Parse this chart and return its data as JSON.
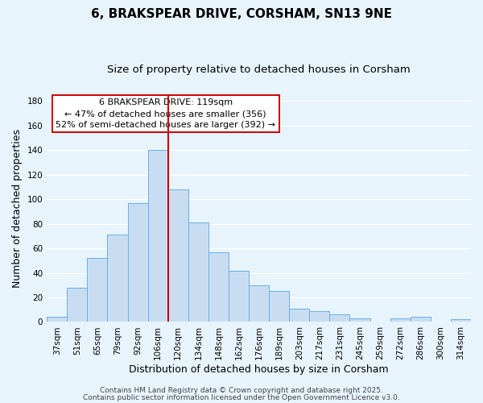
{
  "title": "6, BRAKSPEAR DRIVE, CORSHAM, SN13 9NE",
  "subtitle": "Size of property relative to detached houses in Corsham",
  "xlabel": "Distribution of detached houses by size in Corsham",
  "ylabel": "Number of detached properties",
  "categories": [
    "37sqm",
    "51sqm",
    "65sqm",
    "79sqm",
    "92sqm",
    "106sqm",
    "120sqm",
    "134sqm",
    "148sqm",
    "162sqm",
    "176sqm",
    "189sqm",
    "203sqm",
    "217sqm",
    "231sqm",
    "245sqm",
    "259sqm",
    "272sqm",
    "286sqm",
    "300sqm",
    "314sqm"
  ],
  "values": [
    4,
    28,
    52,
    71,
    97,
    140,
    108,
    81,
    57,
    42,
    30,
    25,
    11,
    9,
    6,
    3,
    0,
    3,
    4,
    0,
    2
  ],
  "bar_color": "#c9ddf2",
  "bar_edge_color": "#6aaee8",
  "vline_color": "#cc0000",
  "ylim": [
    0,
    185
  ],
  "yticks": [
    0,
    20,
    40,
    60,
    80,
    100,
    120,
    140,
    160,
    180
  ],
  "annotation_title": "6 BRAKSPEAR DRIVE: 119sqm",
  "annotation_line1": "← 47% of detached houses are smaller (356)",
  "annotation_line2": "52% of semi-detached houses are larger (392) →",
  "annotation_box_facecolor": "#ffffff",
  "annotation_box_edgecolor": "#cc0000",
  "footer1": "Contains HM Land Registry data © Crown copyright and database right 2025.",
  "footer2": "Contains public sector information licensed under the Open Government Licence v3.0.",
  "fig_facecolor": "#e8f4fc",
  "ax_facecolor": "#e8f4fc",
  "grid_color": "#ffffff",
  "title_fontsize": 11,
  "subtitle_fontsize": 9.5,
  "label_fontsize": 9,
  "tick_fontsize": 7.5,
  "annotation_fontsize": 8,
  "footer_fontsize": 6.5,
  "vline_x_index": 6
}
